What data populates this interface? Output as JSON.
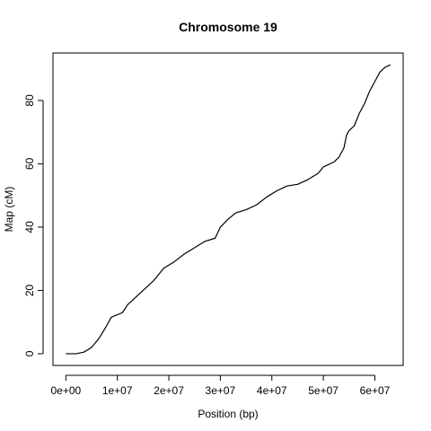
{
  "chart_data": {
    "type": "line",
    "title": "Chromosome 19",
    "xlabel": "Position (bp)",
    "ylabel": "Map (cM)",
    "xlim": [
      -2500000,
      65500000
    ],
    "ylim": [
      -3.7,
      95
    ],
    "x_ticks": [
      {
        "value": 0,
        "label": "0e+00"
      },
      {
        "value": 10000000,
        "label": "1e+07"
      },
      {
        "value": 20000000,
        "label": "2e+07"
      },
      {
        "value": 30000000,
        "label": "3e+07"
      },
      {
        "value": 40000000,
        "label": "4e+07"
      },
      {
        "value": 50000000,
        "label": "5e+07"
      },
      {
        "value": 60000000,
        "label": "6e+07"
      }
    ],
    "y_ticks": [
      {
        "value": 0,
        "label": "0"
      },
      {
        "value": 20,
        "label": "20"
      },
      {
        "value": 40,
        "label": "40"
      },
      {
        "value": 60,
        "label": "60"
      },
      {
        "value": 80,
        "label": "80"
      }
    ],
    "grid": false,
    "series": [
      {
        "color": "#000000",
        "x": [
          0,
          2000000,
          3500000,
          5000000,
          6500000,
          7800000,
          8800000,
          9500000,
          11000000,
          12000000,
          13000000,
          15000000,
          17000000,
          19000000,
          21000000,
          23000000,
          25000000,
          27000000,
          29000000,
          30000000,
          31500000,
          33000000,
          35000000,
          37000000,
          39000000,
          41000000,
          43000000,
          45000000,
          47000000,
          49000000,
          50000000,
          52000000,
          53000000,
          54000000,
          54500000,
          55000000,
          56000000,
          57000000,
          58000000,
          59000000,
          60000000,
          61000000,
          62000000,
          63000000
        ],
        "y": [
          0,
          0,
          0.5,
          2,
          5,
          8.5,
          11.5,
          12,
          13,
          15.5,
          17,
          20,
          23,
          27,
          29,
          31.5,
          33.5,
          35.5,
          36.5,
          40,
          42.5,
          44.5,
          45.5,
          47,
          49.5,
          51.5,
          53,
          53.5,
          55,
          57,
          59,
          60.5,
          62,
          65,
          69,
          70.5,
          72,
          76,
          79,
          83,
          86,
          89,
          90.5,
          91.3
        ]
      }
    ]
  }
}
